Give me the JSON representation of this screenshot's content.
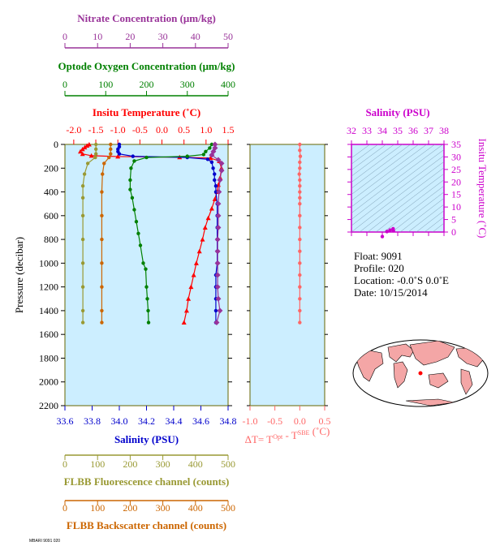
{
  "chart_data": {
    "type": "scatter",
    "title": "",
    "pressure_axis": {
      "label": "Pressure (decibar)",
      "range": [
        0,
        2200
      ],
      "ticks": [
        0,
        200,
        400,
        600,
        800,
        1000,
        1200,
        1400,
        1600,
        1800,
        2000,
        2200
      ],
      "tick_labels": [
        "0",
        "200",
        "400",
        "600",
        "800",
        "1000",
        "1200",
        "1400",
        "1600",
        "1800",
        "2000",
        "2200"
      ],
      "reversed": true
    },
    "x_axes": {
      "nitrate": {
        "label": "Nitrate Concentration (μm/kg)",
        "range": [
          0,
          50
        ],
        "ticks": [
          0,
          10,
          20,
          30,
          40,
          50
        ],
        "tick_labels": [
          "0",
          "10",
          "20",
          "30",
          "40",
          "50"
        ],
        "color": "#993399"
      },
      "oxygen": {
        "label": "Optode Oxygen Concentration (μm/kg)",
        "range": [
          0,
          400
        ],
        "ticks": [
          0,
          100,
          200,
          300,
          400
        ],
        "tick_labels": [
          "0",
          "100",
          "200",
          "300",
          "400"
        ],
        "color": "#008000"
      },
      "temperature": {
        "label": "Insitu Temperature (˚C)",
        "range": [
          -2.2,
          1.5
        ],
        "ticks": [
          -2.0,
          -1.5,
          -1.0,
          -0.5,
          0.0,
          0.5,
          1.0,
          1.5
        ],
        "tick_labels": [
          "-2.0",
          "-1.5",
          "-1.0",
          "-0.5",
          "0.0",
          "0.5",
          "1.0",
          "1.5"
        ],
        "color": "#ff0000"
      },
      "salinity": {
        "label": "Salinity (PSU)",
        "range": [
          33.6,
          34.8
        ],
        "ticks": [
          33.6,
          33.8,
          34.0,
          34.2,
          34.4,
          34.6,
          34.8
        ],
        "tick_labels": [
          "33.6",
          "33.8",
          "34.0",
          "34.2",
          "34.4",
          "34.6",
          "34.8"
        ],
        "color": "#0000cc"
      },
      "fluorescence": {
        "label": "FLBB Fluorescence channel (counts)",
        "range": [
          0,
          500
        ],
        "ticks": [
          0,
          100,
          200,
          300,
          400,
          500
        ],
        "tick_labels": [
          "0",
          "100",
          "200",
          "300",
          "400",
          "500"
        ],
        "color": "#999933"
      },
      "backscatter": {
        "label": "FLBB Backscatter channel (counts)",
        "range": [
          0,
          500
        ],
        "ticks": [
          0,
          100,
          200,
          300,
          400,
          500
        ],
        "tick_labels": [
          "0",
          "100",
          "200",
          "300",
          "400",
          "500"
        ],
        "color": "#cc6600"
      }
    },
    "series": [
      {
        "axis": "temperature",
        "color": "#ff0000",
        "marker": "triangle",
        "points": [
          [
            -1.65,
            0
          ],
          [
            -1.7,
            10
          ],
          [
            -1.75,
            25
          ],
          [
            -1.8,
            40
          ],
          [
            -1.85,
            60
          ],
          [
            -1.8,
            80
          ],
          [
            -1.6,
            95
          ],
          [
            -1.0,
            102
          ],
          [
            0.4,
            108
          ],
          [
            1.1,
            115
          ],
          [
            1.3,
            140
          ],
          [
            1.35,
            200
          ],
          [
            1.32,
            280
          ],
          [
            1.28,
            340
          ],
          [
            1.25,
            400
          ],
          [
            1.2,
            460
          ],
          [
            1.13,
            540
          ],
          [
            1.05,
            620
          ],
          [
            0.98,
            700
          ],
          [
            0.92,
            800
          ],
          [
            0.85,
            900
          ],
          [
            0.78,
            1000
          ],
          [
            0.72,
            1100
          ],
          [
            0.66,
            1200
          ],
          [
            0.6,
            1300
          ],
          [
            0.56,
            1400
          ],
          [
            0.5,
            1500
          ]
        ]
      },
      {
        "axis": "salinity",
        "color": "#0000cc",
        "marker": "circle",
        "points": [
          [
            34.0,
            0
          ],
          [
            34.0,
            20
          ],
          [
            33.99,
            40
          ],
          [
            33.99,
            60
          ],
          [
            34.0,
            80
          ],
          [
            34.1,
            100
          ],
          [
            34.5,
            110
          ],
          [
            34.65,
            125
          ],
          [
            34.68,
            150
          ],
          [
            34.69,
            200
          ],
          [
            34.7,
            250
          ],
          [
            34.7,
            300
          ],
          [
            34.71,
            350
          ],
          [
            34.71,
            400
          ],
          [
            34.72,
            500
          ],
          [
            34.72,
            600
          ],
          [
            34.72,
            700
          ],
          [
            34.72,
            800
          ],
          [
            34.72,
            900
          ],
          [
            34.72,
            1000
          ],
          [
            34.71,
            1100
          ],
          [
            34.71,
            1200
          ],
          [
            34.71,
            1300
          ],
          [
            34.71,
            1400
          ],
          [
            34.71,
            1500
          ]
        ]
      },
      {
        "axis": "oxygen",
        "color": "#008000",
        "marker": "circle",
        "points": [
          [
            360,
            0
          ],
          [
            355,
            30
          ],
          [
            345,
            60
          ],
          [
            340,
            85
          ],
          [
            300,
            100
          ],
          [
            200,
            110
          ],
          [
            170,
            140
          ],
          [
            162,
            200
          ],
          [
            160,
            300
          ],
          [
            160,
            380
          ],
          [
            165,
            450
          ],
          [
            170,
            550
          ],
          [
            175,
            650
          ],
          [
            180,
            750
          ],
          [
            185,
            850
          ],
          [
            192,
            1000
          ],
          [
            198,
            1050
          ],
          [
            200,
            1200
          ],
          [
            202,
            1300
          ],
          [
            204,
            1400
          ],
          [
            205,
            1500
          ]
        ]
      },
      {
        "axis": "nitrate",
        "color": "#993399",
        "marker": "diamond",
        "points": [
          [
            46,
            0
          ],
          [
            46,
            30
          ],
          [
            45.5,
            60
          ],
          [
            45,
            90
          ],
          [
            47,
            130
          ],
          [
            48,
            160
          ],
          [
            48,
            220
          ],
          [
            47.5,
            300
          ],
          [
            47.2,
            400
          ],
          [
            47,
            500
          ],
          [
            47,
            600
          ],
          [
            47,
            700
          ],
          [
            46.8,
            800
          ],
          [
            46.8,
            900
          ],
          [
            46.8,
            1000
          ],
          [
            46.8,
            1100
          ],
          [
            46.8,
            1200
          ],
          [
            47,
            1300
          ],
          [
            47.5,
            1400
          ],
          [
            46.5,
            1500
          ]
        ]
      },
      {
        "axis": "fluorescence",
        "color": "#999933",
        "marker": "circle",
        "points": [
          [
            95,
            0
          ],
          [
            95,
            40
          ],
          [
            95,
            80
          ],
          [
            93,
            110
          ],
          [
            70,
            160
          ],
          [
            60,
            250
          ],
          [
            55,
            350
          ],
          [
            55,
            450
          ],
          [
            55,
            600
          ],
          [
            55,
            800
          ],
          [
            55,
            1000
          ],
          [
            55,
            1200
          ],
          [
            55,
            1400
          ],
          [
            55,
            1500
          ]
        ]
      },
      {
        "axis": "backscatter",
        "color": "#cc6600",
        "marker": "circle",
        "points": [
          [
            140,
            0
          ],
          [
            140,
            40
          ],
          [
            140,
            80
          ],
          [
            135,
            110
          ],
          [
            120,
            160
          ],
          [
            115,
            250
          ],
          [
            113,
            400
          ],
          [
            113,
            600
          ],
          [
            113,
            800
          ],
          [
            113,
            1000
          ],
          [
            113,
            1200
          ],
          [
            113,
            1400
          ],
          [
            113,
            1500
          ]
        ]
      },
      {
        "axis": "delta_t",
        "color": "#ff6666",
        "marker": "circle",
        "points": [
          [
            0.0,
            0
          ],
          [
            0.0,
            50
          ],
          [
            0.01,
            100
          ],
          [
            0.0,
            150
          ],
          [
            0.0,
            200
          ],
          [
            -0.01,
            250
          ],
          [
            0.0,
            300
          ],
          [
            0.0,
            350
          ],
          [
            0.0,
            400
          ],
          [
            0.0,
            450
          ],
          [
            0.0,
            500
          ],
          [
            0.0,
            600
          ],
          [
            0.0,
            700
          ],
          [
            0.0,
            800
          ],
          [
            0.0,
            900
          ],
          [
            0.0,
            1000
          ],
          [
            0.0,
            1100
          ],
          [
            0.0,
            1200
          ],
          [
            0.0,
            1300
          ],
          [
            0.0,
            1400
          ],
          [
            0.0,
            1500
          ]
        ]
      }
    ],
    "delta_t_axis": {
      "label": "ΔT= T",
      "label_sup_1": "Opt",
      "label_mid": " - T",
      "label_sup_2": "SBE",
      "label_end": " (˚C)",
      "range": [
        -1.0,
        0.5
      ],
      "ticks": [
        -1.0,
        -0.5,
        0.0,
        0.5
      ],
      "tick_labels": [
        "-1.0",
        "-0.5",
        "0.0",
        "0.5"
      ],
      "color": "#ff6666"
    },
    "ts_diagram": {
      "x_label": "Salinity (PSU)",
      "x_range": [
        32,
        38
      ],
      "x_ticks": [
        32,
        33,
        34,
        35,
        36,
        37,
        38
      ],
      "x_tick_labels": [
        "32",
        "33",
        "34",
        "35",
        "36",
        "37",
        "38"
      ],
      "y_label": "Insitu Temperature (˚C)",
      "y_range": [
        0,
        35
      ],
      "y_ticks": [
        0,
        5,
        10,
        15,
        20,
        25,
        30,
        35
      ],
      "y_tick_labels": [
        "0",
        "5",
        "10",
        "15",
        "20",
        "25",
        "30",
        "35"
      ],
      "color": "#cc00cc",
      "points": [
        [
          34.0,
          -1.8
        ],
        [
          34.3,
          0.2
        ],
        [
          34.5,
          0.8
        ],
        [
          34.7,
          1.3
        ],
        [
          34.72,
          0.5
        ]
      ]
    }
  },
  "float_info": {
    "float_line": "Float:  9091",
    "profile_line": "Profile:  020",
    "location_line": "Location:  -0.0˚S   0.0˚E",
    "date_line": "Date:  10/15/2014"
  },
  "footer_text": "MBARI 9091 020",
  "colors": {
    "plot_background": "#cceeff",
    "frame": "#666600",
    "land": "#f4a6a6",
    "ocean": "#ffffff"
  }
}
